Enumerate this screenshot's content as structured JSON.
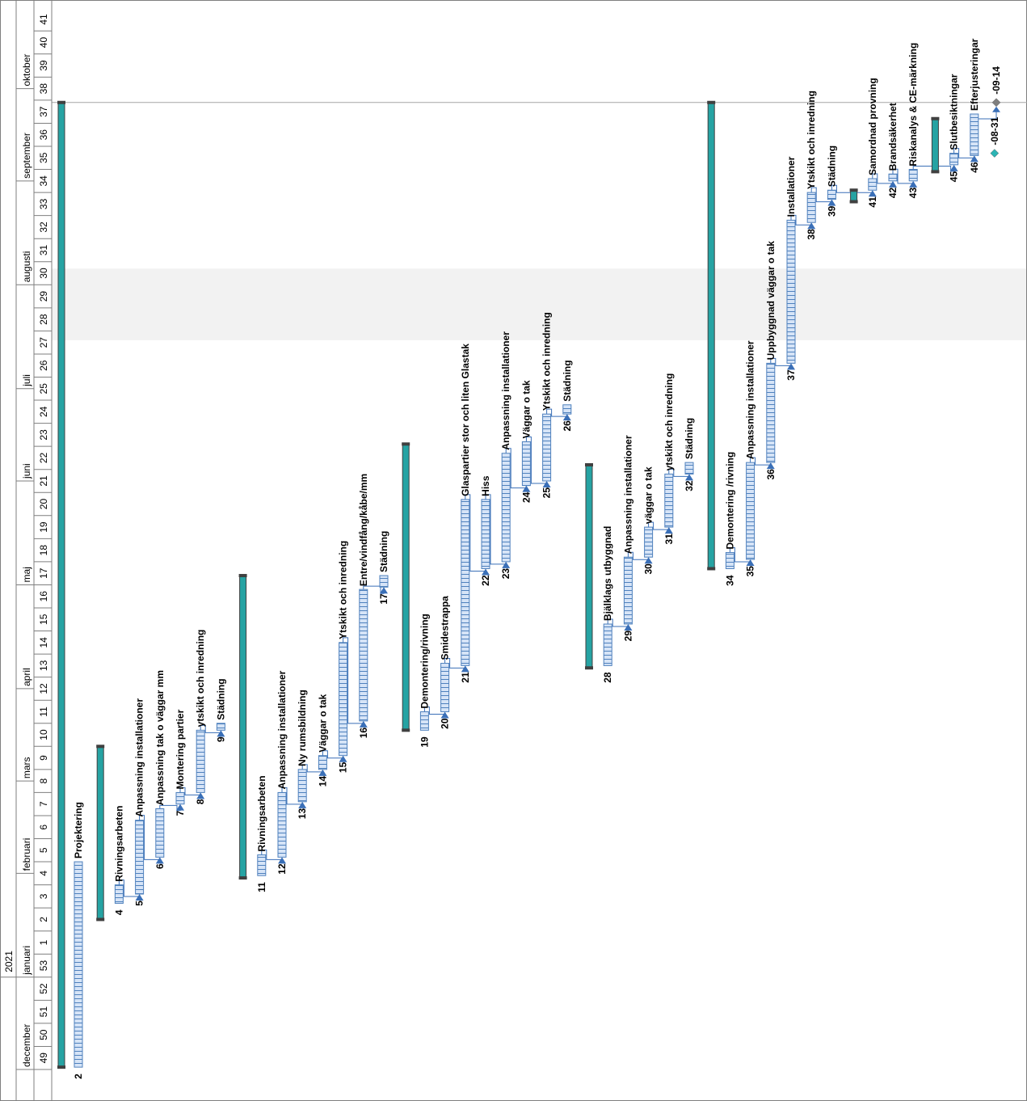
{
  "year_label": "2021",
  "months": [
    {
      "label": "december",
      "start": 49,
      "end": 53
    },
    {
      "label": "januari",
      "start": 53,
      "end": 57.5
    },
    {
      "label": "februari",
      "start": 57.5,
      "end": 61.5
    },
    {
      "label": "mars",
      "start": 61.5,
      "end": 65.5
    },
    {
      "label": "april",
      "start": 65.5,
      "end": 70
    },
    {
      "label": "maj",
      "start": 70,
      "end": 74.5
    },
    {
      "label": "juni",
      "start": 74.5,
      "end": 78.5
    },
    {
      "label": "juli",
      "start": 78.5,
      "end": 83
    },
    {
      "label": "augusti",
      "start": 83,
      "end": 87.5
    },
    {
      "label": "september",
      "start": 87.5,
      "end": 91.5
    },
    {
      "label": "oktober",
      "start": 91.5,
      "end": 94
    }
  ],
  "weeks": [
    {
      "label": "49",
      "pos": 49
    },
    {
      "label": "50",
      "pos": 50
    },
    {
      "label": "51",
      "pos": 51
    },
    {
      "label": "52",
      "pos": 52
    },
    {
      "label": "53",
      "pos": 53
    },
    {
      "label": "1",
      "pos": 54
    },
    {
      "label": "2",
      "pos": 55
    },
    {
      "label": "3",
      "pos": 56
    },
    {
      "label": "4",
      "pos": 57
    },
    {
      "label": "5",
      "pos": 58
    },
    {
      "label": "6",
      "pos": 59
    },
    {
      "label": "7",
      "pos": 60
    },
    {
      "label": "8",
      "pos": 61
    },
    {
      "label": "9",
      "pos": 62
    },
    {
      "label": "10",
      "pos": 63
    },
    {
      "label": "11",
      "pos": 64
    },
    {
      "label": "12",
      "pos": 65
    },
    {
      "label": "13",
      "pos": 66
    },
    {
      "label": "14",
      "pos": 67
    },
    {
      "label": "15",
      "pos": 68
    },
    {
      "label": "16",
      "pos": 69
    },
    {
      "label": "17",
      "pos": 70
    },
    {
      "label": "18",
      "pos": 71
    },
    {
      "label": "19",
      "pos": 72
    },
    {
      "label": "20",
      "pos": 73
    },
    {
      "label": "21",
      "pos": 74
    },
    {
      "label": "22",
      "pos": 75
    },
    {
      "label": "23",
      "pos": 76
    },
    {
      "label": "24",
      "pos": 77
    },
    {
      "label": "25",
      "pos": 78
    },
    {
      "label": "26",
      "pos": 79
    },
    {
      "label": "27",
      "pos": 80
    },
    {
      "label": "28",
      "pos": 81
    },
    {
      "label": "29",
      "pos": 82
    },
    {
      "label": "30",
      "pos": 83
    },
    {
      "label": "31",
      "pos": 84
    },
    {
      "label": "32",
      "pos": 85
    },
    {
      "label": "33",
      "pos": 86
    },
    {
      "label": "34",
      "pos": 87
    },
    {
      "label": "35",
      "pos": 88
    },
    {
      "label": "36",
      "pos": 89
    },
    {
      "label": "37",
      "pos": 90
    },
    {
      "label": "38",
      "pos": 91
    },
    {
      "label": "39",
      "pos": 92
    },
    {
      "label": "40",
      "pos": 93
    },
    {
      "label": "41",
      "pos": 94
    }
  ],
  "holiday": {
    "start": 80.6,
    "end": 83.7
  },
  "status_line_week": 90.9,
  "summaries": [
    {
      "id": "1",
      "start": 49.1,
      "end": 90.9
    },
    {
      "id": "3",
      "start": 55.5,
      "end": 63.0
    },
    {
      "id": "10",
      "start": 57.3,
      "end": 70.4
    },
    {
      "id": "18",
      "start": 63.7,
      "end": 76.1
    },
    {
      "id": "27",
      "start": 66.4,
      "end": 75.2
    },
    {
      "id": "33",
      "start": 70.7,
      "end": 90.9
    },
    {
      "id": "40",
      "start": 86.6,
      "end": 87.1
    },
    {
      "id": "44",
      "start": 87.9,
      "end": 90.2
    }
  ],
  "tasks": [
    {
      "id": "2",
      "label": "Projektering",
      "start": 49.1,
      "end": 58.0
    },
    {
      "id": "4",
      "label": "Rivningsarbeten",
      "start": 56.2,
      "end": 57.0
    },
    {
      "id": "5",
      "label": "Anpassning installationer",
      "start": 56.6,
      "end": 59.8
    },
    {
      "id": "6",
      "label": "Anpassning tak o väggar mm",
      "start": 58.2,
      "end": 60.3
    },
    {
      "id": "7",
      "label": "Montering partier",
      "start": 60.5,
      "end": 61.0
    },
    {
      "id": "8",
      "label": "ytskikt och inredning",
      "start": 61.0,
      "end": 63.7
    },
    {
      "id": "9",
      "label": "Städning",
      "start": 63.7,
      "end": 64.0
    },
    {
      "id": "11",
      "label": "Rivningsarbeten",
      "start": 57.4,
      "end": 58.3
    },
    {
      "id": "12",
      "label": "Anpassning installationer",
      "start": 58.2,
      "end": 61.0
    },
    {
      "id": "13",
      "label": "Ny rumsbildning",
      "start": 60.6,
      "end": 62.0
    },
    {
      "id": "14",
      "label": "Väggar o tak",
      "start": 62.0,
      "end": 62.6
    },
    {
      "id": "15",
      "label": "Ytskikt och inredning",
      "start": 62.6,
      "end": 67.5
    },
    {
      "id": "16",
      "label": "Entre/vindfång/kåbe/mm",
      "start": 64.1,
      "end": 69.8
    },
    {
      "id": "17",
      "label": "Städning",
      "start": 69.9,
      "end": 70.4
    },
    {
      "id": "19",
      "label": "Demontering/rivning",
      "start": 63.7,
      "end": 64.5
    },
    {
      "id": "20",
      "label": "Smidestrappa",
      "start": 64.5,
      "end": 66.6
    },
    {
      "id": "21",
      "label": "Glaspartier stor och liten Glastak",
      "start": 66.5,
      "end": 73.7
    },
    {
      "id": "22",
      "label": "Hiss",
      "start": 70.7,
      "end": 73.7
    },
    {
      "id": "23",
      "label": "Anpassning installationer",
      "start": 71.0,
      "end": 75.7
    },
    {
      "id": "24",
      "label": "Väggar o tak",
      "start": 74.3,
      "end": 76.2
    },
    {
      "id": "25",
      "label": "Ytskikt och inredning",
      "start": 74.5,
      "end": 77.4
    },
    {
      "id": "26",
      "label": "Städning",
      "start": 77.4,
      "end": 77.8
    },
    {
      "id": "28",
      "label": "Bjälklags utbyggnad",
      "start": 66.5,
      "end": 68.3
    },
    {
      "id": "29",
      "label": "Anpassning installationer",
      "start": 68.3,
      "end": 71.2
    },
    {
      "id": "30",
      "label": "väggar o tak",
      "start": 71.2,
      "end": 72.5
    },
    {
      "id": "31",
      "label": "ytskikt och inredning",
      "start": 72.5,
      "end": 74.8
    },
    {
      "id": "32",
      "label": "Städning",
      "start": 74.8,
      "end": 75.3
    },
    {
      "id": "34",
      "label": "Demontering /rivning",
      "start": 70.7,
      "end": 71.4
    },
    {
      "id": "35",
      "label": "Anpassning installationer",
      "start": 71.1,
      "end": 75.3
    },
    {
      "id": "36",
      "label": "Uppbyggnad väggar o tak",
      "start": 75.3,
      "end": 79.6
    },
    {
      "id": "37",
      "label": "Installationer",
      "start": 79.6,
      "end": 85.8
    },
    {
      "id": "38",
      "label": "Ytskikt och inredning",
      "start": 85.7,
      "end": 87.0
    },
    {
      "id": "39",
      "label": "Städning",
      "start": 86.7,
      "end": 87.1
    },
    {
      "id": "41",
      "label": "Samordnad provning",
      "start": 87.1,
      "end": 87.6
    },
    {
      "id": "42",
      "label": "Brandsäkerhet",
      "start": 87.5,
      "end": 87.8
    },
    {
      "id": "43",
      "label": "Riskanalys & CE-märkning",
      "start": 87.5,
      "end": 88.0
    },
    {
      "id": "45",
      "label": "Slutbesiktningar",
      "start": 88.2,
      "end": 88.7
    },
    {
      "id": "46",
      "label": "Efterjusteringar",
      "start": 88.6,
      "end": 90.4
    }
  ],
  "milestones": [
    {
      "id": "46",
      "label": "-08-31",
      "week": 88.7,
      "color": "#2bb4b4"
    },
    {
      "id": "47",
      "label": "-09-14",
      "week": 90.9,
      "color": "#7f7f7f"
    }
  ],
  "links": [
    [
      "4",
      "5"
    ],
    [
      "5",
      "6"
    ],
    [
      "6",
      "7"
    ],
    [
      "7",
      "8"
    ],
    [
      "8",
      "9"
    ],
    [
      "11",
      "12"
    ],
    [
      "12",
      "13"
    ],
    [
      "13",
      "14"
    ],
    [
      "14",
      "15"
    ],
    [
      "15",
      "16"
    ],
    [
      "16",
      "17"
    ],
    [
      "19",
      "20"
    ],
    [
      "20",
      "21"
    ],
    [
      "21",
      "22"
    ],
    [
      "22",
      "23"
    ],
    [
      "23",
      "24"
    ],
    [
      "24",
      "25"
    ],
    [
      "25",
      "26"
    ],
    [
      "28",
      "29"
    ],
    [
      "29",
      "30"
    ],
    [
      "30",
      "31"
    ],
    [
      "31",
      "32"
    ],
    [
      "34",
      "35"
    ],
    [
      "35",
      "36"
    ],
    [
      "36",
      "37"
    ],
    [
      "37",
      "38"
    ],
    [
      "38",
      "39"
    ],
    [
      "39",
      "41"
    ],
    [
      "41",
      "42"
    ],
    [
      "42",
      "43"
    ],
    [
      "43",
      "45"
    ],
    [
      "45",
      "46"
    ]
  ],
  "colors": {
    "task_fill": "#d6e4f7",
    "task_stripe": "#4f81bd",
    "summary_fill": "#26a3a3",
    "summary_cap": "#404040",
    "link": "#3a6fb7",
    "holiday": "#f2f2f2",
    "grid": "#bfbfbf"
  }
}
